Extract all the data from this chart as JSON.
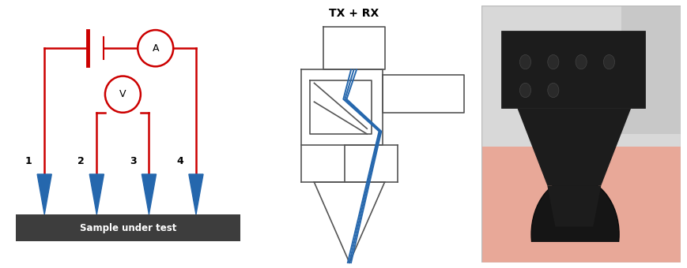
{
  "fig_width": 8.7,
  "fig_height": 3.4,
  "dpi": 100,
  "bg_color": "#ffffff",
  "red_color": "#cc0000",
  "blue_color": "#2567ad",
  "dark_gray": "#3d3d3d",
  "probe_labels": [
    "1",
    "2",
    "3",
    "4"
  ],
  "sample_text": "Sample under test",
  "tx_rx_label": "TX + RX",
  "schematic_color": "#555555",
  "blue_beam": "#2567ad"
}
